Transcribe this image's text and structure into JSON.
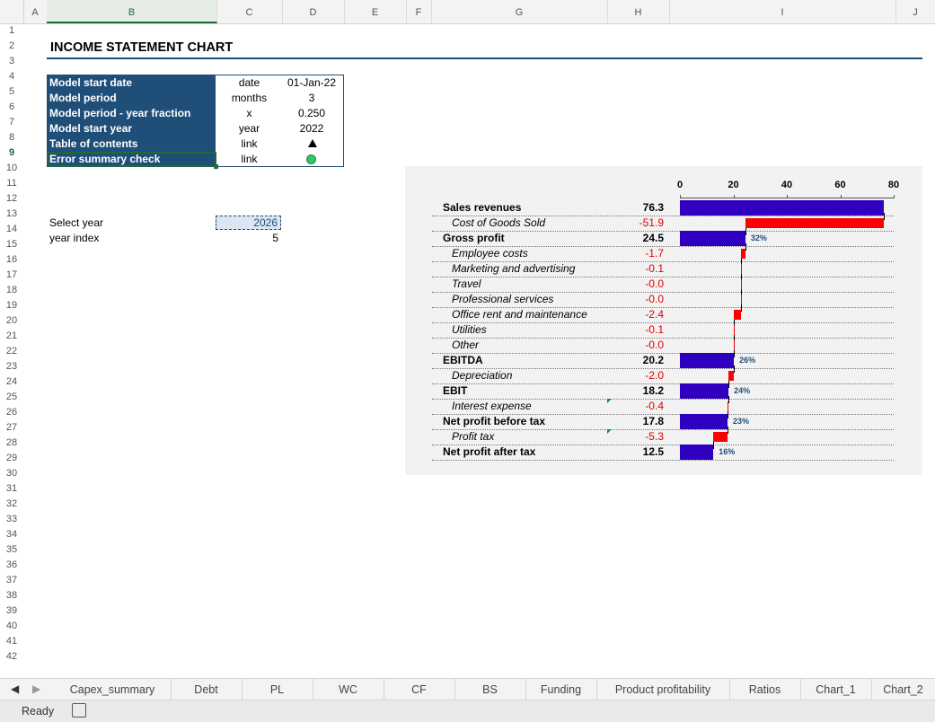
{
  "columns": [
    "A",
    "B",
    "C",
    "D",
    "E",
    "F",
    "G",
    "H",
    "I",
    "J"
  ],
  "rows": [
    "1",
    "2",
    "3",
    "4",
    "5",
    "6",
    "7",
    "8",
    "9",
    "10",
    "11",
    "12",
    "13",
    "14",
    "15",
    "16",
    "17",
    "18",
    "19",
    "20",
    "21",
    "22",
    "23",
    "24",
    "25",
    "26",
    "27",
    "28",
    "29",
    "30",
    "31",
    "32",
    "33",
    "34",
    "35",
    "36",
    "37",
    "38",
    "39",
    "40",
    "41",
    "42"
  ],
  "title": "INCOME STATEMENT CHART",
  "info": [
    {
      "label": "Model start date",
      "unit": "date",
      "value": "01-Jan-22"
    },
    {
      "label": "Model period",
      "unit": "months",
      "value": "3"
    },
    {
      "label": "Model period - year fraction",
      "unit": "x",
      "value": "0.250"
    },
    {
      "label": "Model start year",
      "unit": "year",
      "value": "2022"
    },
    {
      "label": "Table of contents",
      "unit": "link",
      "value": ""
    },
    {
      "label": "Error summary check",
      "unit": "link",
      "value": ""
    }
  ],
  "select_year": {
    "label": "Select year",
    "value": "2026"
  },
  "year_index": {
    "label": "year index",
    "value": "5"
  },
  "chart_data": {
    "type": "bar",
    "x_ticks": [
      "0",
      "20",
      "40",
      "60",
      "80"
    ],
    "xlim": [
      0,
      80
    ],
    "rows": [
      {
        "label": "Sales revenues",
        "value": "76.3",
        "num": 76.3,
        "kind": "total",
        "start": 0,
        "end": 76.3,
        "pct": ""
      },
      {
        "label": "Cost of Goods Sold",
        "value": "-51.9",
        "num": -51.9,
        "kind": "cost",
        "start": 24.5,
        "end": 76.3,
        "pct": ""
      },
      {
        "label": "Gross profit",
        "value": "24.5",
        "num": 24.5,
        "kind": "total",
        "start": 0,
        "end": 24.5,
        "pct": "32%"
      },
      {
        "label": "Employee costs",
        "value": "-1.7",
        "num": -1.7,
        "kind": "cost",
        "start": 22.8,
        "end": 24.5,
        "pct": ""
      },
      {
        "label": "Marketing and advertising",
        "value": "-0.1",
        "num": -0.1,
        "kind": "cost",
        "start": 22.7,
        "end": 22.8,
        "pct": ""
      },
      {
        "label": "Travel",
        "value": "-0.0",
        "num": 0.0,
        "kind": "cost",
        "start": 22.7,
        "end": 22.7,
        "pct": ""
      },
      {
        "label": "Professional services",
        "value": "-0.0",
        "num": 0.0,
        "kind": "cost",
        "start": 22.7,
        "end": 22.7,
        "pct": ""
      },
      {
        "label": "Office rent and maintenance",
        "value": "-2.4",
        "num": -2.4,
        "kind": "cost",
        "start": 20.3,
        "end": 22.7,
        "pct": ""
      },
      {
        "label": "Utilities",
        "value": "-0.1",
        "num": -0.1,
        "kind": "cost",
        "start": 20.2,
        "end": 20.3,
        "pct": ""
      },
      {
        "label": "Other",
        "value": "-0.0",
        "num": 0.0,
        "kind": "cost",
        "start": 20.2,
        "end": 20.2,
        "pct": ""
      },
      {
        "label": "EBITDA",
        "value": "20.2",
        "num": 20.2,
        "kind": "total",
        "start": 0,
        "end": 20.2,
        "pct": "26%"
      },
      {
        "label": "Depreciation",
        "value": "-2.0",
        "num": -2.0,
        "kind": "cost",
        "start": 18.2,
        "end": 20.2,
        "pct": ""
      },
      {
        "label": "EBIT",
        "value": "18.2",
        "num": 18.2,
        "kind": "total",
        "start": 0,
        "end": 18.2,
        "pct": "24%"
      },
      {
        "label": "Interest expense",
        "value": "-0.4",
        "num": -0.4,
        "kind": "cost",
        "start": 17.8,
        "end": 18.2,
        "pct": ""
      },
      {
        "label": "Net profit before tax",
        "value": "17.8",
        "num": 17.8,
        "kind": "total",
        "start": 0,
        "end": 17.8,
        "pct": "23%"
      },
      {
        "label": "Profit tax",
        "value": "-5.3",
        "num": -5.3,
        "kind": "cost",
        "start": 12.5,
        "end": 17.8,
        "pct": ""
      },
      {
        "label": "Net profit after tax",
        "value": "12.5",
        "num": 12.5,
        "kind": "total",
        "start": 0,
        "end": 12.5,
        "pct": "16%"
      }
    ],
    "colors": {
      "total": "#3000c0",
      "cost": "#ff0000"
    }
  },
  "sheet_tabs": [
    "Capex_summary",
    "Debt",
    "PL",
    "WC",
    "CF",
    "BS",
    "Funding",
    "Product profitability",
    "Ratios",
    "Chart_1",
    "Chart_2"
  ],
  "status": "Ready"
}
